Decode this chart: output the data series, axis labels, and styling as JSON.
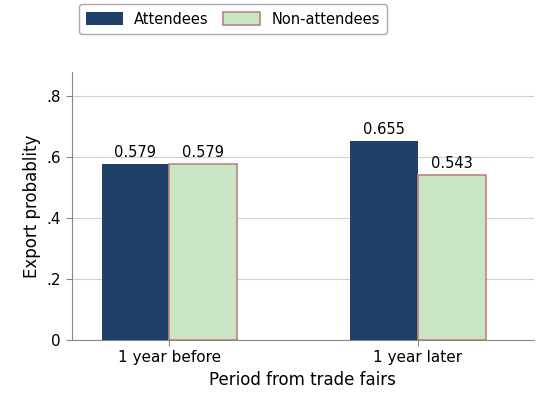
{
  "categories": [
    "1 year before",
    "1 year later"
  ],
  "attendees_values": [
    0.579,
    0.655
  ],
  "non_attendees_values": [
    0.579,
    0.543
  ],
  "attendees_color": "#1f4068",
  "non_attendees_color": "#c8e6c4",
  "non_attendees_edge_color": "#c08080",
  "attendees_label": "Attendees",
  "non_attendees_label": "Non-attendees",
  "xlabel": "Period from trade fairs",
  "ylabel": "Export probablity",
  "ylim": [
    0,
    0.88
  ],
  "yticks": [
    0,
    0.2,
    0.4,
    0.6,
    0.8
  ],
  "ytick_labels": [
    "0",
    ".2",
    ".4",
    ".6",
    ".8"
  ],
  "bar_width": 0.38,
  "group_centers": [
    1.0,
    2.4
  ],
  "value_fontsize": 10.5,
  "axis_fontsize": 11,
  "background_color": "#ffffff",
  "grid_color": "#d0d0d0"
}
